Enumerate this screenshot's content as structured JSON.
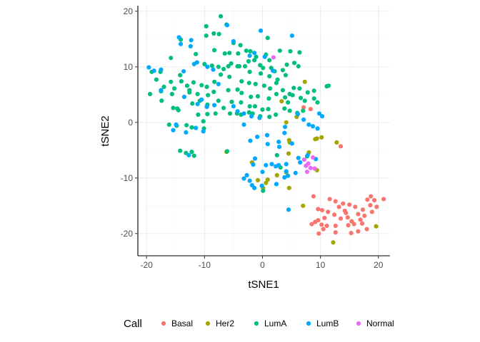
{
  "chart_data": {
    "type": "scatter",
    "xlabel": "tSNE1",
    "ylabel": "tSNE2",
    "xlim": [
      -21.5,
      22
    ],
    "ylim": [
      -24,
      21
    ],
    "x_ticks": [
      -20,
      -10,
      0,
      10,
      20
    ],
    "y_ticks": [
      -20,
      -10,
      0,
      10,
      20
    ],
    "x_tick_labels": [
      "-20",
      "-10",
      "0",
      "10",
      "20"
    ],
    "y_tick_labels": [
      "-20",
      "-10",
      "0",
      "10",
      "20"
    ],
    "grid": true,
    "legend": {
      "title": "Call",
      "placement": "bottom"
    },
    "series": [
      {
        "name": "Basal",
        "color": "#F8766D",
        "points": [
          [
            8.8,
            -13.3
          ],
          [
            11.6,
            -13.8
          ],
          [
            12.6,
            -14.2
          ],
          [
            13.9,
            -14.6
          ],
          [
            13.2,
            -15.2
          ],
          [
            14.2,
            -15.9
          ],
          [
            15,
            -14.8
          ],
          [
            16,
            -15.2
          ],
          [
            17.3,
            -15.7
          ],
          [
            16.5,
            -16.5
          ],
          [
            18.1,
            -13.9
          ],
          [
            18.7,
            -13.3
          ],
          [
            19.3,
            -14
          ],
          [
            20.9,
            -13.8
          ],
          [
            19.7,
            -15.2
          ],
          [
            18.6,
            -14.9
          ],
          [
            18.9,
            -16.1
          ],
          [
            17.6,
            -16.8
          ],
          [
            16.9,
            -17.5
          ],
          [
            15.4,
            -17.8
          ],
          [
            14.7,
            -17.1
          ],
          [
            14.4,
            -16.3
          ],
          [
            13.5,
            -17.3
          ],
          [
            12.4,
            -16.6
          ],
          [
            11.3,
            -16.1
          ],
          [
            10.3,
            -15.8
          ],
          [
            9.6,
            -15.6
          ],
          [
            10.7,
            -17.2
          ],
          [
            9.6,
            -17.6
          ],
          [
            9.1,
            -17.9
          ],
          [
            8.5,
            -18.3
          ],
          [
            10.2,
            -18.4
          ],
          [
            11.1,
            -18.6
          ],
          [
            12.6,
            -18.6
          ],
          [
            14.8,
            -18.5
          ],
          [
            15.8,
            -18.3
          ],
          [
            17.2,
            -18.2
          ],
          [
            18,
            -19.2
          ],
          [
            16.5,
            -19.6
          ],
          [
            15.3,
            -19.9
          ],
          [
            12.6,
            -19.8
          ],
          [
            10.5,
            -19.2
          ],
          [
            9.7,
            -20
          ],
          [
            7.1,
            2.7
          ],
          [
            8.3,
            2.4
          ],
          [
            13.5,
            -4.3
          ]
        ]
      },
      {
        "name": "Her2",
        "color": "#A3A500",
        "points": [
          [
            7.3,
            7.3
          ],
          [
            3.3,
            3.8
          ],
          [
            4.1,
            0
          ],
          [
            5.9,
            1
          ],
          [
            4.6,
            -3.2
          ],
          [
            4.7,
            -3.6
          ],
          [
            9.1,
            -3
          ],
          [
            9.4,
            -2.9
          ],
          [
            10.2,
            -2.7
          ],
          [
            12.8,
            -3.6
          ],
          [
            4.5,
            -5.6
          ],
          [
            8,
            -5.4
          ],
          [
            9.4,
            -8.6
          ],
          [
            4.1,
            -9
          ],
          [
            2.5,
            -9.5
          ],
          [
            -0.8,
            -10.4
          ],
          [
            0.9,
            -10.3
          ],
          [
            0.6,
            -10.9
          ],
          [
            -1.8,
            -7.2
          ],
          [
            0.1,
            -11.8
          ],
          [
            -6.2,
            -5.3
          ],
          [
            4.6,
            -11.8
          ],
          [
            7,
            -15
          ],
          [
            12.2,
            -21.6
          ],
          [
            19.6,
            -18.7
          ]
        ]
      },
      {
        "name": "LumA",
        "color": "#00BF7D",
        "points": [
          [
            -7.2,
            19.1
          ],
          [
            -9.7,
            17.3
          ],
          [
            -6.2,
            17.6
          ],
          [
            -9.7,
            15.6
          ],
          [
            -8.4,
            16
          ],
          [
            -7.5,
            15.9
          ],
          [
            0.9,
            15.2
          ],
          [
            -5,
            14.3
          ],
          [
            -3.8,
            13.9
          ],
          [
            -14.1,
            14.9
          ],
          [
            -15.8,
            11.6
          ],
          [
            -11.5,
            12.3
          ],
          [
            -8.3,
            13
          ],
          [
            -5.7,
            12.5
          ],
          [
            -4.2,
            12.4
          ],
          [
            -2.8,
            12.9
          ],
          [
            -2.1,
            12.8
          ],
          [
            -1.1,
            11.8
          ],
          [
            0.6,
            12.2
          ],
          [
            1.2,
            11.2
          ],
          [
            3,
            12.9
          ],
          [
            4.8,
            12.8
          ],
          [
            6.4,
            12.6
          ],
          [
            -1.4,
            11.2
          ],
          [
            -6.5,
            12.4
          ],
          [
            -5.4,
            10.6
          ],
          [
            -4,
            10.1
          ],
          [
            -3,
            10.1
          ],
          [
            -2.4,
            11
          ],
          [
            -0.4,
            10.3
          ],
          [
            0.1,
            9.8
          ],
          [
            1.5,
            9.8
          ],
          [
            2.1,
            9.2
          ],
          [
            3.5,
            9.4
          ],
          [
            4.2,
            10.4
          ],
          [
            5.5,
            10.7
          ],
          [
            6.2,
            10.1
          ],
          [
            -10,
            10.5
          ],
          [
            -8.7,
            10.2
          ],
          [
            -7.6,
            10
          ],
          [
            -6.7,
            9.6
          ],
          [
            -5.9,
            10.1
          ],
          [
            -4.3,
            10.1
          ],
          [
            -2.2,
            9.1
          ],
          [
            1.2,
            8.3
          ],
          [
            -0.3,
            8.8
          ],
          [
            2.6,
            7.7
          ],
          [
            4,
            8.5
          ],
          [
            -19.1,
            9.1
          ],
          [
            -17.6,
            9.1
          ],
          [
            -18.3,
            7.7
          ],
          [
            -15.8,
            7.3
          ],
          [
            -14.2,
            8.5
          ],
          [
            -14,
            7.4
          ],
          [
            -13,
            6.6
          ],
          [
            -12.6,
            5.8
          ],
          [
            -11.9,
            7.2
          ],
          [
            -10.5,
            6.7
          ],
          [
            -9.6,
            6.4
          ],
          [
            -8.3,
            7.3
          ],
          [
            -7.2,
            8.6
          ],
          [
            -5.7,
            8.2
          ],
          [
            -3.6,
            7.4
          ],
          [
            -2.3,
            7.1
          ],
          [
            -1.2,
            6.9
          ],
          [
            0.3,
            6.6
          ],
          [
            1.3,
            6.1
          ],
          [
            2.4,
            7.1
          ],
          [
            3.5,
            5.8
          ],
          [
            4.7,
            5.1
          ],
          [
            5.4,
            6.2
          ],
          [
            6.4,
            6.1
          ],
          [
            7.8,
            5.4
          ],
          [
            8.9,
            5.7
          ],
          [
            11.1,
            6.5
          ],
          [
            11.4,
            6.6
          ],
          [
            -19.4,
            5.1
          ],
          [
            -17.5,
            5.6
          ],
          [
            -17,
            6.4
          ],
          [
            -15.6,
            5.1
          ],
          [
            -15.2,
            6.1
          ],
          [
            -12.6,
            5.4
          ],
          [
            -11.2,
            5.1
          ],
          [
            -9.4,
            4.9
          ],
          [
            -8.4,
            5.5
          ],
          [
            -5.9,
            5.8
          ],
          [
            -4.3,
            5.9
          ],
          [
            -3.6,
            5.3
          ],
          [
            -2,
            4.6
          ],
          [
            -0.8,
            4.7
          ],
          [
            1.1,
            4.3
          ],
          [
            2.4,
            5.1
          ],
          [
            3.9,
            4.5
          ],
          [
            5.2,
            4.9
          ],
          [
            6.6,
            4.4
          ],
          [
            7.3,
            3.9
          ],
          [
            9.5,
            3.6
          ],
          [
            -17.4,
            3.9
          ],
          [
            -15.4,
            2.6
          ],
          [
            -14.5,
            2.2
          ],
          [
            -12.1,
            3.4
          ],
          [
            -10.8,
            3.9
          ],
          [
            -9.5,
            3.2
          ],
          [
            -7.6,
            3.9
          ],
          [
            -6.7,
            2.6
          ],
          [
            -5.3,
            3.7
          ],
          [
            -3.7,
            3.6
          ],
          [
            -2.2,
            2.9
          ],
          [
            -1.3,
            2.9
          ],
          [
            0,
            2.3
          ],
          [
            1,
            2.4
          ],
          [
            2.3,
            1.4
          ],
          [
            3.8,
            2.5
          ],
          [
            4.7,
            2.1
          ],
          [
            6,
            1.7
          ],
          [
            7,
            2.1
          ],
          [
            -14.7,
            2.5
          ],
          [
            -11.1,
            1.4
          ],
          [
            -9.5,
            1.5
          ],
          [
            -8.1,
            1.6
          ],
          [
            -5.6,
            1.6
          ],
          [
            -4.4,
            1.6
          ],
          [
            -3.7,
            1.4
          ],
          [
            -2.3,
            1.8
          ],
          [
            -1.7,
            1.6
          ],
          [
            -0.4,
            1.1
          ],
          [
            1.2,
            1
          ],
          [
            -16.1,
            -0.4
          ],
          [
            -14.8,
            -0.6
          ],
          [
            -13.1,
            -0.5
          ],
          [
            -12.2,
            -0.9
          ],
          [
            -10.2,
            0.2
          ],
          [
            -10.1,
            -1.1
          ],
          [
            -14.2,
            -5.1
          ],
          [
            -13.2,
            -5.5
          ],
          [
            -12.2,
            -5.3
          ],
          [
            -11.8,
            -6
          ],
          [
            -6.1,
            -5.2
          ],
          [
            4.4,
            3.6
          ],
          [
            8.9,
            4.3
          ],
          [
            2.5,
            -5.9
          ],
          [
            3.1,
            -8.1
          ],
          [
            0.1,
            -12.3
          ],
          [
            7.7,
            -6.1
          ]
        ]
      },
      {
        "name": "LumB",
        "color": "#00A9FF",
        "points": [
          [
            -6.1,
            17.5
          ],
          [
            -0.3,
            16.5
          ],
          [
            -14.4,
            15.3
          ],
          [
            -14.1,
            14.1
          ],
          [
            -12.3,
            14.8
          ],
          [
            -12.4,
            13.7
          ],
          [
            5.1,
            15.6
          ],
          [
            -11.3,
            10.8
          ],
          [
            -9.5,
            10
          ],
          [
            -19.6,
            9.9
          ],
          [
            -18.7,
            9.3
          ],
          [
            -17.5,
            9.5
          ],
          [
            -5,
            14.6
          ],
          [
            -2.2,
            12
          ],
          [
            -1.4,
            12.5
          ],
          [
            -13.6,
            9.2
          ],
          [
            -11.8,
            10.5
          ],
          [
            -8.5,
            9.5
          ],
          [
            0.4,
            11.8
          ],
          [
            1.8,
            9.3
          ],
          [
            -7.6,
            6.9
          ],
          [
            -10.5,
            4.1
          ],
          [
            -17.5,
            5.8
          ],
          [
            -13.5,
            4.6
          ],
          [
            -11.2,
            3.3
          ],
          [
            -9.6,
            2.8
          ],
          [
            -8.3,
            3.1
          ],
          [
            -11.5,
            -1
          ],
          [
            -10.2,
            -1.6
          ],
          [
            -14.9,
            -0.4
          ],
          [
            -15.4,
            -1.4
          ],
          [
            -13.2,
            -1.8
          ],
          [
            -12.7,
            -5.9
          ],
          [
            -3.2,
            -0.4
          ],
          [
            -2.1,
            -3.3
          ],
          [
            -0.9,
            -2.6
          ],
          [
            0.8,
            -2.3
          ],
          [
            0.9,
            -3.9
          ],
          [
            2.8,
            -3.5
          ],
          [
            2.9,
            -4.4
          ],
          [
            3.9,
            -0.8
          ],
          [
            3.8,
            -1.9
          ],
          [
            5.1,
            -3.8
          ],
          [
            6.1,
            1.5
          ],
          [
            7.1,
            0.5
          ],
          [
            8,
            -0.4
          ],
          [
            8.7,
            -0.7
          ],
          [
            9.5,
            -1.1
          ],
          [
            9.8,
            1.6
          ],
          [
            10.3,
            1.1
          ],
          [
            -5,
            2.9
          ],
          [
            -4.3,
            2
          ],
          [
            -3.2,
            1.6
          ],
          [
            -1.9,
            1.1
          ],
          [
            -0.5,
            0.8
          ],
          [
            -1.3,
            -6.5
          ],
          [
            -1.6,
            -7.6
          ],
          [
            0,
            -8.9
          ],
          [
            0.6,
            -7.7
          ],
          [
            1.6,
            -7.5
          ],
          [
            2.3,
            -7.9
          ],
          [
            2.8,
            -7.7
          ],
          [
            4.1,
            -7.5
          ],
          [
            4.1,
            -8.8
          ],
          [
            4.4,
            -9.6
          ],
          [
            5.7,
            -9.1
          ],
          [
            6.2,
            -6.4
          ],
          [
            7.8,
            -5.9
          ],
          [
            6.5,
            -7.2
          ],
          [
            9.2,
            -6.6
          ],
          [
            3.8,
            -9.9
          ],
          [
            4.5,
            -15.7
          ],
          [
            -2.7,
            -9.5
          ],
          [
            -3.2,
            -10.1
          ],
          [
            -2.2,
            -10.5
          ],
          [
            -1.8,
            -11.3
          ],
          [
            -1.4,
            -11.8
          ],
          [
            -0.1,
            -11.4
          ],
          [
            2.4,
            -11.1
          ]
        ]
      },
      {
        "name": "Normal",
        "color": "#E76BF3",
        "points": [
          [
            1.9,
            11.7
          ],
          [
            7.2,
            -6.7
          ],
          [
            7.9,
            -7.4
          ],
          [
            8.3,
            -8.2
          ],
          [
            7.5,
            -7.8
          ],
          [
            8.7,
            -6.3
          ],
          [
            9,
            -8.3
          ],
          [
            7.7,
            -8.9
          ]
        ]
      }
    ]
  }
}
